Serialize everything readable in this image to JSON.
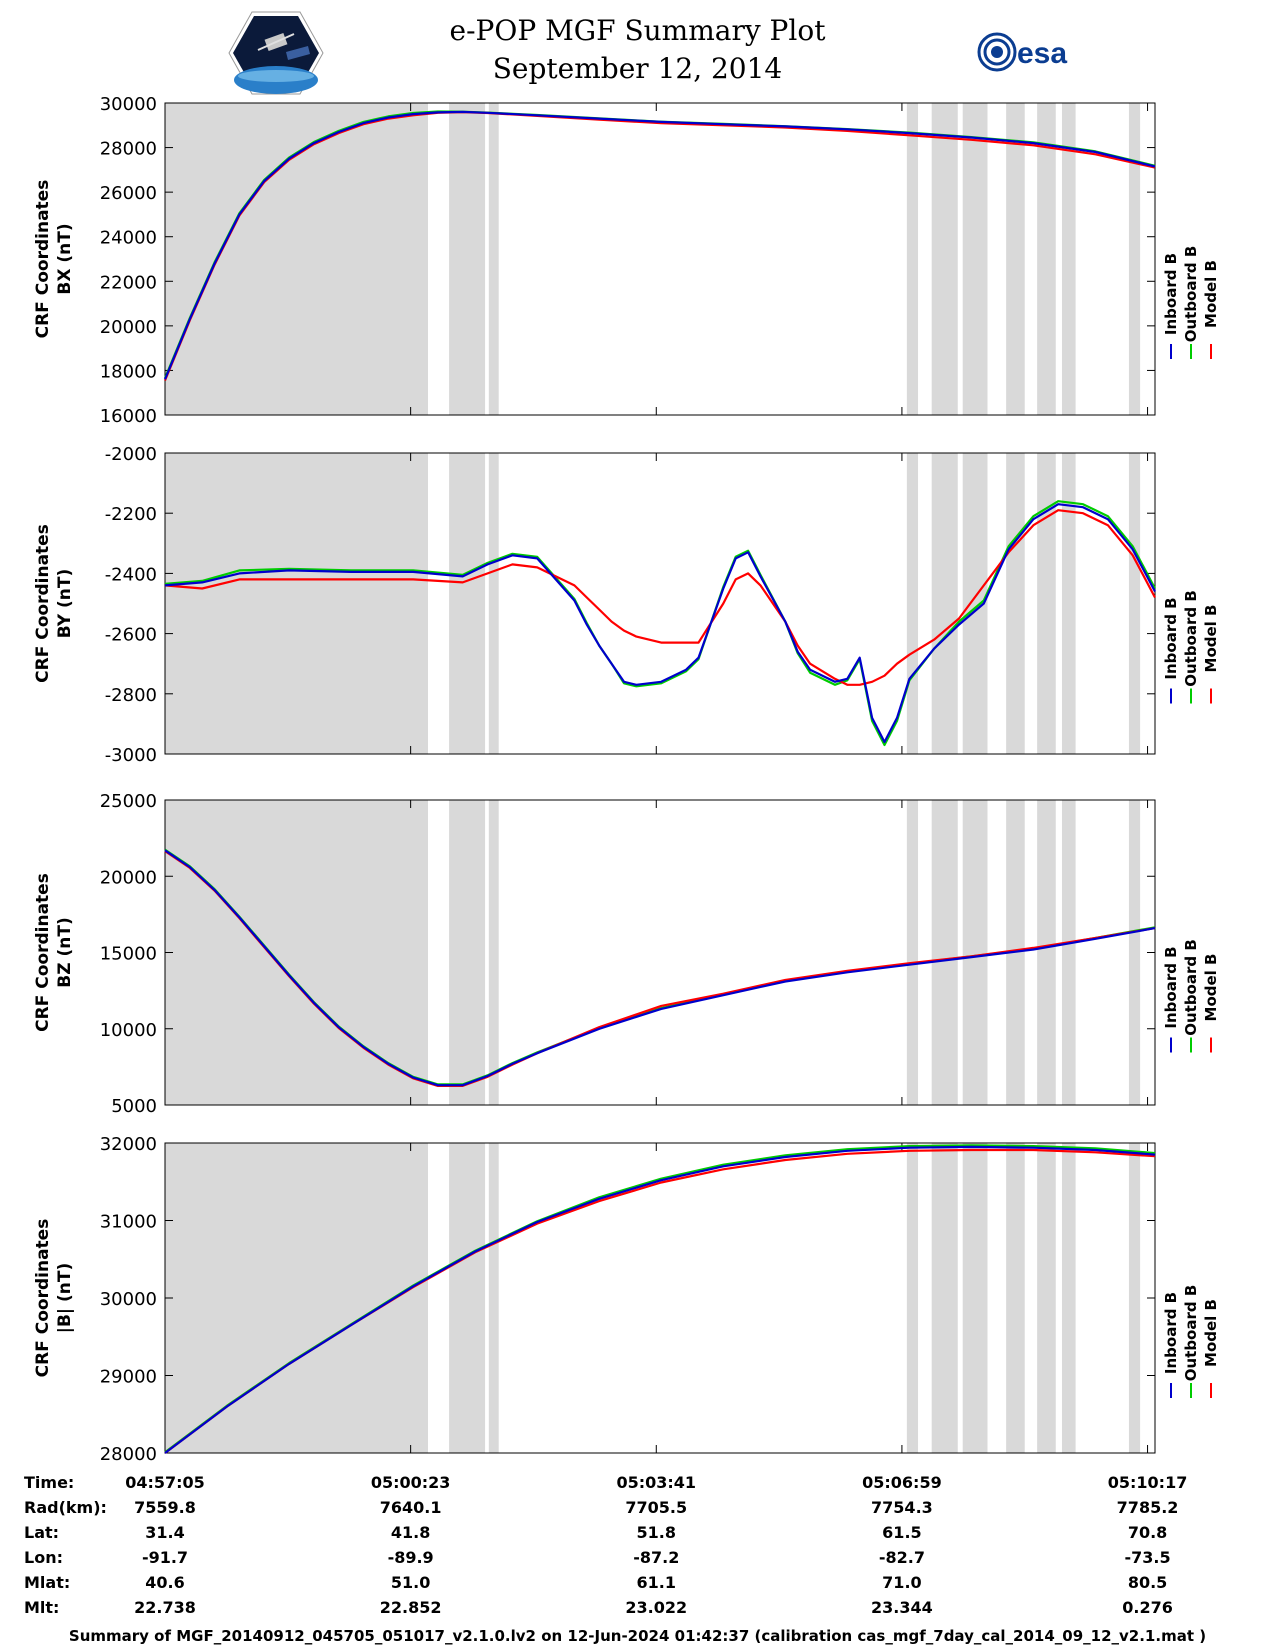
{
  "header": {
    "title": "e-POP MGF Summary Plot",
    "date": "September 12, 2014"
  },
  "logos": {
    "left": "CASSIOPE mission logo",
    "right": "esa"
  },
  "legend": {
    "labels": [
      "Inboard B",
      "Outboard B",
      "Model B"
    ],
    "colors": [
      "#0000cc",
      "#00cc00",
      "#ff0000"
    ]
  },
  "chart_data": {
    "type": "line",
    "x_label_times": [
      "04:57:05",
      "05:00:23",
      "05:03:41",
      "05:06:59",
      "05:10:17"
    ],
    "xlim_seconds": [
      0,
      798
    ],
    "x_tick_seconds": [
      0,
      198,
      396,
      594,
      792
    ],
    "gaps_seconds": [
      [
        0,
        212
      ],
      [
        229,
        258
      ],
      [
        261,
        269
      ],
      [
        598,
        607
      ],
      [
        618,
        639
      ],
      [
        643,
        663
      ],
      [
        678,
        693
      ],
      [
        703,
        718
      ],
      [
        723,
        734
      ],
      [
        777,
        786
      ]
    ],
    "panels": [
      {
        "ylabel1": "CRF Coordinates",
        "ylabel2": "BX (nT)",
        "ylim": [
          16000,
          30000
        ],
        "yticks": [
          16000,
          18000,
          20000,
          22000,
          24000,
          26000,
          28000,
          30000
        ],
        "x": [
          0,
          20,
          40,
          60,
          80,
          100,
          120,
          140,
          160,
          180,
          200,
          220,
          240,
          260,
          300,
          350,
          400,
          450,
          500,
          550,
          600,
          650,
          700,
          750,
          798
        ],
        "series": [
          {
            "name": "Inboard B",
            "values": [
              17600,
              20300,
              22800,
              25000,
              26500,
              27500,
              28200,
              28700,
              29100,
              29350,
              29500,
              29580,
              29600,
              29560,
              29450,
              29300,
              29150,
              29050,
              28950,
              28820,
              28650,
              28450,
              28200,
              27800,
              27150
            ]
          },
          {
            "name": "Outboard B",
            "values": [
              17650,
              20350,
              22850,
              25050,
              26550,
              27550,
              28250,
              28750,
              29150,
              29400,
              29550,
              29620,
              29610,
              29570,
              29460,
              29310,
              29160,
              29060,
              28960,
              28830,
              28670,
              28470,
              28230,
              27830,
              27180
            ]
          },
          {
            "name": "Model B",
            "values": [
              17550,
              20250,
              22750,
              24950,
              26450,
              27450,
              28150,
              28650,
              29050,
              29300,
              29450,
              29560,
              29590,
              29550,
              29420,
              29250,
              29100,
              29000,
              28900,
              28750,
              28550,
              28350,
              28100,
              27700,
              27100
            ]
          }
        ]
      },
      {
        "ylabel1": "CRF Coordinates",
        "ylabel2": "BY (nT)",
        "ylim": [
          -3000,
          -2000
        ],
        "yticks": [
          -3000,
          -2800,
          -2600,
          -2400,
          -2200,
          -2000
        ],
        "x": [
          0,
          30,
          60,
          100,
          150,
          200,
          240,
          260,
          280,
          300,
          330,
          340,
          350,
          360,
          370,
          380,
          400,
          420,
          430,
          450,
          460,
          470,
          480,
          500,
          510,
          520,
          540,
          550,
          560,
          570,
          580,
          590,
          600,
          620,
          640,
          660,
          680,
          700,
          720,
          740,
          760,
          780,
          798
        ],
        "series": [
          {
            "name": "Inboard B",
            "values": [
              -2440,
              -2430,
              -2400,
              -2390,
              -2395,
              -2395,
              -2410,
              -2370,
              -2340,
              -2350,
              -2490,
              -2570,
              -2640,
              -2700,
              -2760,
              -2770,
              -2760,
              -2720,
              -2680,
              -2450,
              -2350,
              -2330,
              -2410,
              -2560,
              -2660,
              -2720,
              -2760,
              -2750,
              -2680,
              -2880,
              -2960,
              -2880,
              -2750,
              -2650,
              -2570,
              -2500,
              -2320,
              -2220,
              -2170,
              -2180,
              -2220,
              -2320,
              -2460
            ]
          },
          {
            "name": "Outboard B",
            "values": [
              -2435,
              -2425,
              -2390,
              -2385,
              -2390,
              -2390,
              -2405,
              -2365,
              -2335,
              -2345,
              -2485,
              -2565,
              -2640,
              -2700,
              -2765,
              -2775,
              -2765,
              -2725,
              -2685,
              -2445,
              -2345,
              -2325,
              -2405,
              -2560,
              -2665,
              -2730,
              -2770,
              -2755,
              -2685,
              -2890,
              -2970,
              -2890,
              -2755,
              -2650,
              -2560,
              -2490,
              -2310,
              -2210,
              -2160,
              -2170,
              -2210,
              -2310,
              -2450
            ]
          },
          {
            "name": "Model B",
            "values": [
              -2440,
              -2450,
              -2420,
              -2420,
              -2420,
              -2420,
              -2430,
              -2400,
              -2370,
              -2380,
              -2440,
              -2480,
              -2520,
              -2560,
              -2590,
              -2610,
              -2630,
              -2630,
              -2630,
              -2500,
              -2420,
              -2400,
              -2440,
              -2560,
              -2640,
              -2700,
              -2750,
              -2770,
              -2770,
              -2760,
              -2740,
              -2700,
              -2670,
              -2620,
              -2550,
              -2440,
              -2330,
              -2240,
              -2190,
              -2200,
              -2240,
              -2340,
              -2480
            ]
          }
        ]
      },
      {
        "ylabel1": "CRF Coordinates",
        "ylabel2": "BZ (nT)",
        "ylim": [
          5000,
          25000
        ],
        "yticks": [
          5000,
          10000,
          15000,
          20000,
          25000
        ],
        "x": [
          0,
          20,
          40,
          60,
          80,
          100,
          120,
          140,
          160,
          180,
          200,
          220,
          240,
          260,
          280,
          300,
          350,
          400,
          450,
          500,
          550,
          600,
          650,
          700,
          750,
          798
        ],
        "series": [
          {
            "name": "Inboard B",
            "values": [
              21700,
              20600,
              19100,
              17300,
              15400,
              13500,
              11700,
              10100,
              8800,
              7700,
              6800,
              6300,
              6300,
              6900,
              7700,
              8400,
              10000,
              11300,
              12200,
              13100,
              13700,
              14200,
              14700,
              15200,
              15900,
              16600
            ]
          },
          {
            "name": "Outboard B",
            "values": [
              21750,
              20650,
              19150,
              17350,
              15450,
              13550,
              11750,
              10150,
              8850,
              7750,
              6850,
              6350,
              6350,
              6950,
              7750,
              8450,
              10050,
              11350,
              12250,
              13150,
              13750,
              14250,
              14750,
              15250,
              15950,
              16650
            ]
          },
          {
            "name": "Model B",
            "values": [
              21650,
              20550,
              19050,
              17250,
              15350,
              13450,
              11650,
              10050,
              8750,
              7650,
              6750,
              6250,
              6250,
              6850,
              7650,
              8400,
              10100,
              11500,
              12300,
              13200,
              13800,
              14300,
              14750,
              15300,
              15950,
              16600
            ]
          }
        ]
      },
      {
        "ylabel1": "CRF Coordinates",
        "ylabel2": "|B| (nT)",
        "ylim": [
          28000,
          32000
        ],
        "yticks": [
          28000,
          29000,
          30000,
          31000,
          32000
        ],
        "x": [
          0,
          50,
          100,
          150,
          200,
          250,
          300,
          350,
          400,
          450,
          500,
          550,
          600,
          650,
          700,
          750,
          798
        ],
        "series": [
          {
            "name": "Inboard B",
            "values": [
              28000,
              28600,
              29150,
              29650,
              30150,
              30600,
              30980,
              31280,
              31520,
              31700,
              31820,
              31900,
              31940,
              31950,
              31940,
              31910,
              31850
            ]
          },
          {
            "name": "Outboard B",
            "values": [
              28010,
              28610,
              29160,
              29660,
              30160,
              30610,
              30990,
              31300,
              31540,
              31720,
              31840,
              31920,
              31960,
              31970,
              31960,
              31930,
              31870
            ]
          },
          {
            "name": "Model B",
            "values": [
              28000,
              28600,
              29150,
              29650,
              30140,
              30590,
              30960,
              31250,
              31490,
              31660,
              31780,
              31860,
              31900,
              31910,
              31910,
              31880,
              31830
            ]
          }
        ]
      }
    ]
  },
  "ephemeris": {
    "labels": [
      "Time:",
      "Rad(km):",
      "Lat:",
      "Lon:",
      "Mlat:",
      "Mlt:"
    ],
    "columns": [
      [
        "04:57:05",
        "7559.8",
        "31.4",
        "-91.7",
        "40.6",
        "22.738"
      ],
      [
        "05:00:23",
        "7640.1",
        "41.8",
        "-89.9",
        "51.0",
        "22.852"
      ],
      [
        "05:03:41",
        "7705.5",
        "51.8",
        "-87.2",
        "61.1",
        "23.022"
      ],
      [
        "05:06:59",
        "7754.3",
        "61.5",
        "-82.7",
        "71.0",
        "23.344"
      ],
      [
        "05:10:17",
        "7785.2",
        "70.8",
        "-73.5",
        "80.5",
        "0.276"
      ]
    ]
  },
  "footer": "Summary of MGF_20140912_045705_051017_v2.1.0.lv2 on 12-Jun-2024 01:42:37 (calibration cas_mgf_7day_cal_2014_09_12_v2.1.mat )"
}
